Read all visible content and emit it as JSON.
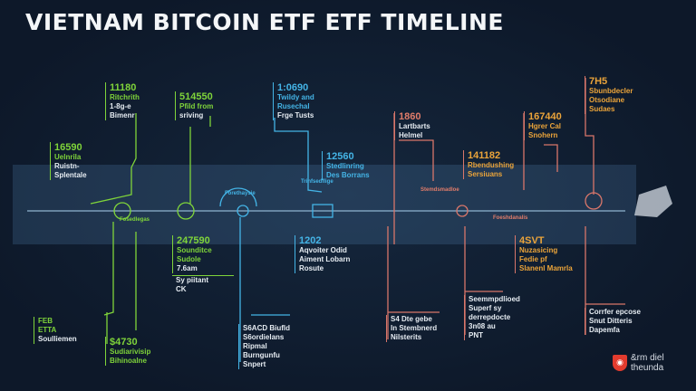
{
  "title": "VIETNAM BITCOIN ETF ETF TIMELINE",
  "colors": {
    "background": "#0f1c2e",
    "green": "#7fd43a",
    "cyan": "#44b4e6",
    "salmon": "#e07c6a",
    "orange": "#eba43a",
    "text": "#e6ecf2"
  },
  "top_events": [
    {
      "number": "11180",
      "lines": [
        "Ritchrith",
        "1-8g-e",
        "Bimenr"
      ]
    },
    {
      "number": "514550",
      "lines": [
        "Pfild from",
        "sriving"
      ]
    },
    {
      "number": "16590",
      "lines": [
        "Uelnrila",
        "Ruistn-",
        "Splentale"
      ]
    },
    {
      "number": "1:0690",
      "lines": [
        "Twildy and",
        "Rusechal",
        "Frge Tusts"
      ]
    },
    {
      "number": "12560",
      "lines": [
        "Stedlinring",
        "Des Borrans"
      ]
    },
    {
      "number": "1860",
      "lines": [
        "Lartbarts",
        "Helmel"
      ]
    },
    {
      "number": "141182",
      "lines": [
        "Rbendushing",
        "Sersiuans"
      ]
    },
    {
      "number": "167440",
      "lines": [
        "Hgrer Cal",
        "Snohern"
      ]
    },
    {
      "number": "7H5",
      "lines": [
        "Sbunbdecler",
        "Otsodiane",
        "Sudaes"
      ]
    }
  ],
  "bottom_events": [
    {
      "number": "247590",
      "lines": [
        "Sounditce",
        "Sudole",
        "7.6am"
      ],
      "note": [
        "Sy piitant",
        "CK"
      ]
    },
    {
      "number": "1202",
      "lines": [
        "Aqvoiter Odid",
        "Aiment Lobarn",
        "Rosute"
      ]
    },
    {
      "number": "FEB",
      "lines": [
        "ETTA",
        "Soulliemen"
      ]
    },
    {
      "number": "$4730",
      "lines": [
        "Sudiarivisip",
        "Bihinoalne"
      ]
    },
    {
      "number": "",
      "lines": [
        "S6ACD Biufld",
        "S6ordielans",
        "Ripmal",
        "Burngunfu",
        "Snpert"
      ]
    },
    {
      "number": "",
      "lines": [
        "S4 Dte gebe",
        "ln Stembnerd",
        "Nilsterits"
      ]
    },
    {
      "number": "",
      "lines": [
        "Seemmpdlioed",
        "Superf sy",
        "derrepdocte",
        "3n08 au",
        "PNT"
      ]
    },
    {
      "number": "4SVT",
      "lines": [
        "Nuzasicing",
        "Fedie pf",
        "Slanenl Mamrla"
      ]
    },
    {
      "number": "",
      "lines": [
        "Corrfer epcose",
        "Snut Ditteris",
        "Dapemfa"
      ]
    }
  ],
  "timeline_labels": [
    "Forethaysie",
    "Fosedlegas",
    "Trinfsedflige",
    "Stemdsmadloe",
    "Foeshdanalis"
  ],
  "logo": {
    "line1": "&rm diel",
    "line2": "theunda",
    "icon": "shield-icon"
  }
}
